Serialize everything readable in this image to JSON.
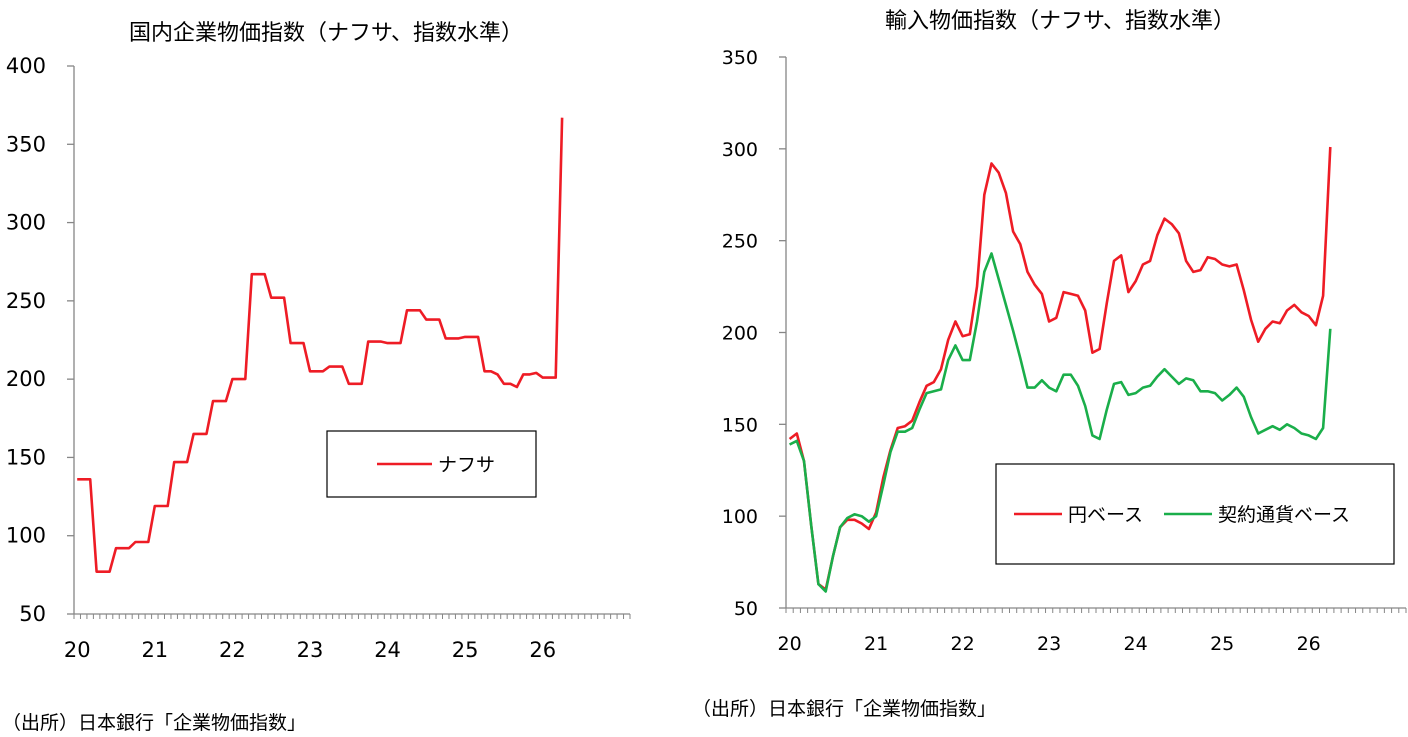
{
  "chart_data": [
    {
      "type": "line",
      "title": "国内企業物価指数（ナフサ、指数水準）",
      "xlabel": "",
      "ylabel": "",
      "ylim": [
        50,
        400
      ],
      "yticks": [
        50,
        100,
        150,
        200,
        250,
        300,
        350,
        400
      ],
      "xtick_labels": [
        "20",
        "21",
        "22",
        "23",
        "24",
        "25",
        "26"
      ],
      "x_start": "2020-01",
      "x_end": "2026-03",
      "legend_position": "center-right",
      "grid": false,
      "series": [
        {
          "name": "ナフサ",
          "color": "#ee1c25",
          "values": [
            136,
            136,
            136,
            77,
            77,
            77,
            92,
            92,
            92,
            96,
            96,
            96,
            119,
            119,
            119,
            147,
            147,
            147,
            165,
            165,
            165,
            186,
            186,
            186,
            200,
            200,
            200,
            267,
            267,
            267,
            252,
            252,
            252,
            223,
            223,
            223,
            205,
            205,
            205,
            208,
            208,
            208,
            197,
            197,
            197,
            224,
            224,
            224,
            223,
            223,
            223,
            244,
            244,
            244,
            238,
            238,
            238,
            226,
            226,
            226,
            227,
            227,
            227,
            205,
            205,
            203,
            197,
            197,
            195,
            203,
            203,
            204,
            201,
            201,
            201,
            367
          ]
        }
      ]
    },
    {
      "type": "line",
      "title": "輸入物価指数（ナフサ、指数水準）",
      "xlabel": "",
      "ylabel": "",
      "ylim": [
        50,
        350
      ],
      "yticks": [
        50,
        100,
        150,
        200,
        250,
        300,
        350
      ],
      "xtick_labels": [
        "20",
        "21",
        "22",
        "23",
        "24",
        "25",
        "26"
      ],
      "x_start": "2020-01",
      "x_end": "2026-03",
      "legend_position": "bottom-right",
      "grid": false,
      "series": [
        {
          "name": "円ベース",
          "color": "#ee1c25",
          "values": [
            142,
            145,
            130,
            95,
            63,
            60,
            78,
            94,
            98,
            98,
            96,
            93,
            102,
            121,
            136,
            148,
            149,
            152,
            162,
            171,
            173,
            180,
            196,
            206,
            198,
            199,
            225,
            275,
            292,
            287,
            276,
            255,
            248,
            233,
            226,
            221,
            206,
            208,
            222,
            221,
            220,
            212,
            189,
            191,
            216,
            239,
            242,
            222,
            228,
            237,
            239,
            253,
            262,
            259,
            254,
            239,
            233,
            234,
            241,
            240,
            237,
            236,
            237,
            223,
            207,
            195,
            202,
            206,
            205,
            212,
            215,
            211,
            209,
            204,
            220,
            301
          ]
        },
        {
          "name": "契約通貨ベース",
          "color": "#1aae4a",
          "values": [
            139,
            141,
            130,
            95,
            63,
            59,
            78,
            94,
            99,
            101,
            100,
            97,
            100,
            117,
            135,
            146,
            146,
            148,
            158,
            167,
            168,
            169,
            185,
            193,
            185,
            185,
            206,
            233,
            243,
            229,
            215,
            201,
            186,
            170,
            170,
            174,
            170,
            168,
            177,
            177,
            171,
            160,
            144,
            142,
            158,
            172,
            173,
            166,
            167,
            170,
            171,
            176,
            180,
            176,
            172,
            175,
            174,
            168,
            168,
            167,
            163,
            166,
            170,
            165,
            154,
            145,
            147,
            149,
            147,
            150,
            148,
            145,
            144,
            142,
            148,
            202
          ]
        }
      ]
    }
  ],
  "sources": [
    "（出所）日本銀行「企業物価指数」",
    "（出所）日本銀行「企業物価指数」"
  ]
}
